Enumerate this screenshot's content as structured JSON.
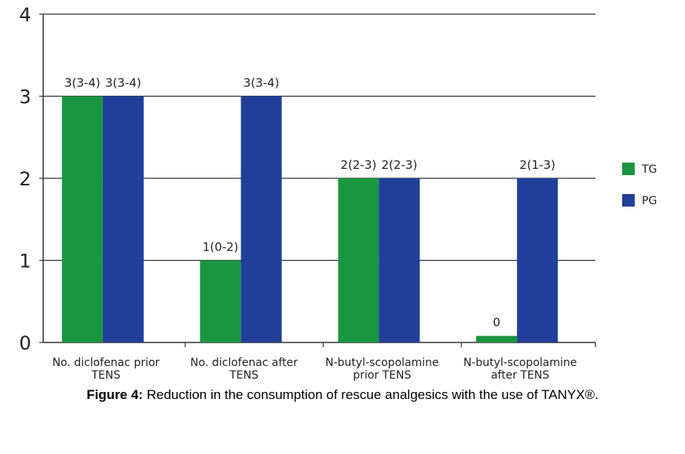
{
  "chart_data": {
    "type": "bar",
    "categories": [
      [
        "No. diclofenac prior",
        "TENS"
      ],
      [
        "No. diclofenac after",
        "TENS"
      ],
      [
        "N-butyl-scopolamine",
        "prior TENS"
      ],
      [
        "N-butyl-scopolamine",
        "after TENS"
      ]
    ],
    "series": [
      {
        "name": "TG",
        "color": "#1a9641",
        "values": [
          3,
          1,
          2,
          0.08
        ],
        "labels": [
          "3(3-4)",
          "1(0-2)",
          "2(2-3)",
          "0"
        ]
      },
      {
        "name": "PG",
        "color": "#213f99",
        "values": [
          3,
          3,
          2,
          2
        ],
        "labels": [
          "3(3-4)",
          "3(3-4)",
          "2(2-3)",
          "2(1-3)"
        ]
      }
    ],
    "yticks": [
      "0",
      "1",
      "2",
      "3",
      "4"
    ],
    "ylim": [
      0,
      4
    ],
    "grid": true,
    "legend_position": "right",
    "title": "",
    "xlabel": "",
    "ylabel": ""
  },
  "caption": {
    "label": "Figure 4:",
    "text": " Reduction in the consumption of rescue analgesics with the use of TANYX®."
  }
}
